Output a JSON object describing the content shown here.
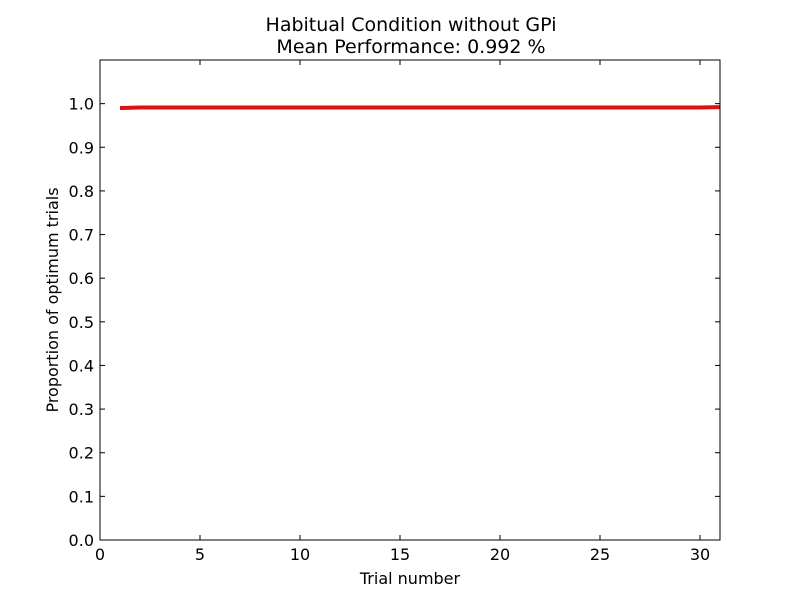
{
  "chart_data": {
    "type": "line",
    "title": "Habitual Condition without GPi",
    "subtitle": "Mean Performance: 0.992 %",
    "xlabel": "Trial number",
    "ylabel": "Proportion of optimum trials",
    "xlim": [
      0,
      31
    ],
    "ylim": [
      0,
      1.1
    ],
    "x_ticks": [
      0,
      5,
      10,
      15,
      20,
      25,
      30
    ],
    "y_ticks": [
      0.0,
      0.1,
      0.2,
      0.3,
      0.4,
      0.5,
      0.6,
      0.7,
      0.8,
      0.9,
      1.0
    ],
    "x_tick_labels": [
      "0",
      "5",
      "10",
      "15",
      "20",
      "25",
      "30"
    ],
    "y_tick_labels": [
      "0.0",
      "0.1",
      "0.2",
      "0.3",
      "0.4",
      "0.5",
      "0.6",
      "0.7",
      "0.8",
      "0.9",
      "1.0"
    ],
    "grid": false,
    "series": [
      {
        "color": "#dd1111",
        "x": [
          1,
          2,
          3,
          4,
          5,
          6,
          7,
          8,
          9,
          10,
          11,
          12,
          13,
          14,
          15,
          16,
          17,
          18,
          19,
          20,
          21,
          22,
          23,
          24,
          25,
          26,
          27,
          28,
          29,
          30,
          31
        ],
        "values": [
          0.99,
          0.991,
          0.991,
          0.991,
          0.991,
          0.991,
          0.991,
          0.991,
          0.991,
          0.991,
          0.991,
          0.991,
          0.991,
          0.991,
          0.991,
          0.991,
          0.991,
          0.991,
          0.991,
          0.991,
          0.991,
          0.991,
          0.991,
          0.991,
          0.991,
          0.991,
          0.991,
          0.991,
          0.991,
          0.991,
          0.992
        ]
      }
    ]
  }
}
